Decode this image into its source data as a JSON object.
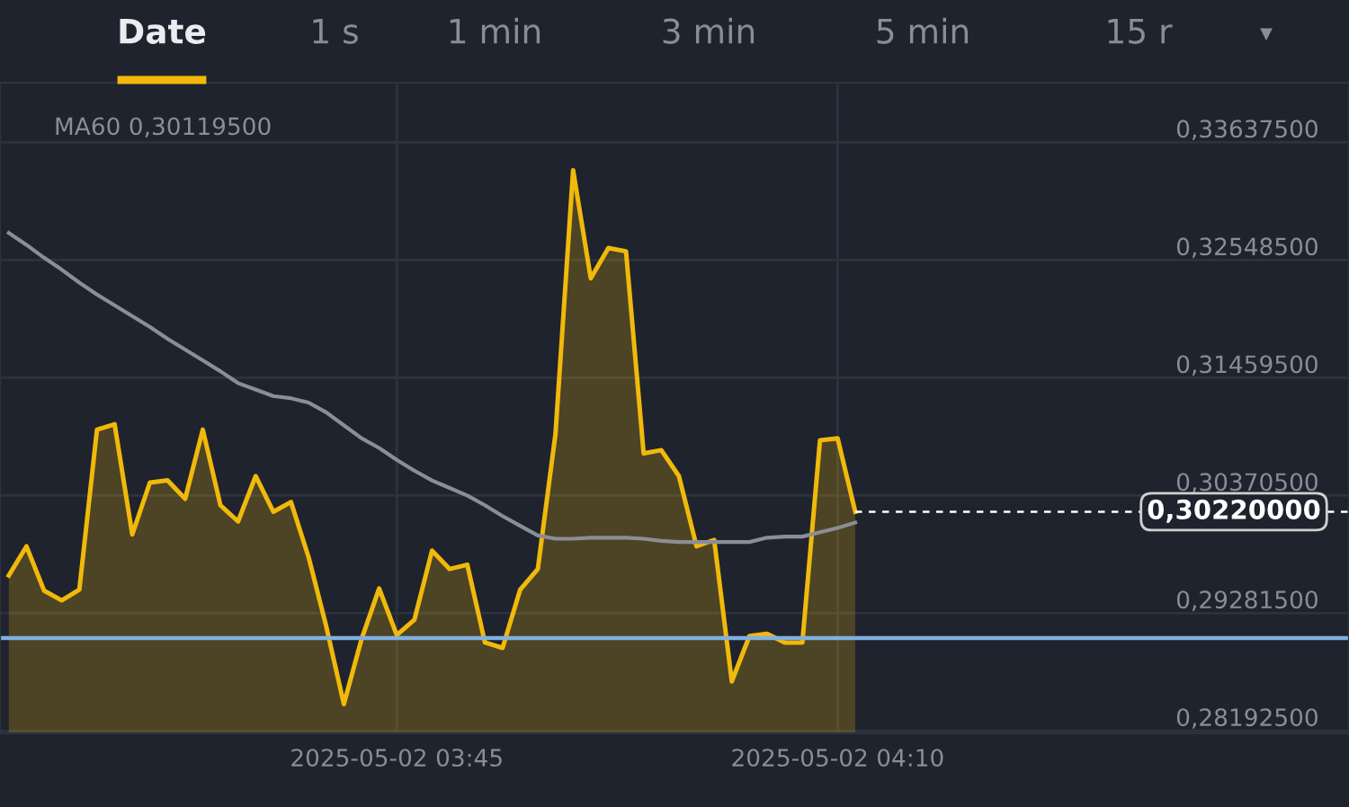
{
  "chart_data": {
    "type": "area",
    "annotations": [
      "Date",
      "1 s",
      "1 min",
      "3 min",
      "5 min",
      "15 r",
      "▾"
    ],
    "x": [
      "2025-05-02T03:23",
      "2025-05-02T03:24",
      "2025-05-02T03:25",
      "2025-05-02T03:26",
      "2025-05-02T03:27",
      "2025-05-02T03:28",
      "2025-05-02T03:29",
      "2025-05-02T03:30",
      "2025-05-02T03:31",
      "2025-05-02T03:32",
      "2025-05-02T03:33",
      "2025-05-02T03:34",
      "2025-05-02T03:35",
      "2025-05-02T03:36",
      "2025-05-02T03:37",
      "2025-05-02T03:38",
      "2025-05-02T03:39",
      "2025-05-02T03:40",
      "2025-05-02T03:41",
      "2025-05-02T03:42",
      "2025-05-02T03:43",
      "2025-05-02T03:44",
      "2025-05-02T03:45",
      "2025-05-02T03:46",
      "2025-05-02T03:47",
      "2025-05-02T03:48",
      "2025-05-02T03:49",
      "2025-05-02T03:50",
      "2025-05-02T03:51",
      "2025-05-02T03:52",
      "2025-05-02T03:53",
      "2025-05-02T03:54",
      "2025-05-02T03:55",
      "2025-05-02T03:56",
      "2025-05-02T03:57",
      "2025-05-02T03:58",
      "2025-05-02T03:59",
      "2025-05-02T04:00",
      "2025-05-02T04:01",
      "2025-05-02T04:02",
      "2025-05-02T04:03",
      "2025-05-02T04:04",
      "2025-05-02T04:05",
      "2025-05-02T04:06",
      "2025-05-02T04:07",
      "2025-05-02T04:08",
      "2025-05-02T04:09",
      "2025-05-02T04:10",
      "2025-05-02T04:11"
    ],
    "series": [
      {
        "color": "#f0b90b",
        "values": [
          0.2963,
          0.299,
          0.2949,
          0.294,
          0.295,
          0.3098,
          0.3103,
          0.3001,
          0.3049,
          0.3051,
          0.3034,
          0.3098,
          0.3028,
          0.3013,
          0.3055,
          0.3022,
          0.3031,
          0.298,
          0.2916,
          0.2844,
          0.2904,
          0.2951,
          0.2908,
          0.2922,
          0.2986,
          0.2969,
          0.2973,
          0.2901,
          0.2896,
          0.295,
          0.2969,
          0.3094,
          0.3338,
          0.3238,
          0.3266,
          0.3263,
          0.3076,
          0.3079,
          0.3055,
          0.299,
          0.2996,
          0.2865,
          0.2907,
          0.2909,
          0.2901,
          0.2901,
          0.3088,
          0.309,
          0.3022
        ]
      },
      {
        "type": "line",
        "name": "MA60 0,30119500",
        "color": "#8b8e96",
        "values": [
          0.328,
          0.3269,
          0.3257,
          0.3246,
          0.3234,
          0.3223,
          0.3213,
          0.3203,
          0.3193,
          0.3182,
          0.3172,
          0.3162,
          0.3152,
          0.3141,
          0.3135,
          0.3129,
          0.3127,
          0.3123,
          0.3114,
          0.3102,
          0.309,
          0.3081,
          0.307,
          0.306,
          0.3051,
          0.3044,
          0.3037,
          0.3028,
          0.3018,
          0.3009,
          0.3,
          0.2997,
          0.2997,
          0.2998,
          0.2998,
          0.2998,
          0.2997,
          0.2995,
          0.2994,
          0.2994,
          0.2994,
          0.2994,
          0.2994,
          0.2998,
          0.2999,
          0.2999,
          0.3003,
          0.3007,
          0.3012
        ]
      }
    ],
    "xlim": [
      "2025-05-02T03:22:30",
      "2025-05-02T04:39"
    ],
    "xticks": [
      {
        "value": "2025-05-02T03:45",
        "label": "2025-05-02 03:45"
      },
      {
        "value": "2025-05-02T04:10",
        "label": "2025-05-02 04:10"
      }
    ],
    "ylim": [
      0.2817,
      0.3419
    ],
    "yticks": [
      {
        "value": 0.281925,
        "label": "0,28192500"
      },
      {
        "value": 0.292815,
        "label": "0,29281500"
      },
      {
        "value": 0.303705,
        "label": "0,30370500"
      },
      {
        "value": 0.314595,
        "label": "0,31459500"
      },
      {
        "value": 0.325485,
        "label": "0,32548500"
      },
      {
        "value": 0.336375,
        "label": "0,33637500"
      }
    ],
    "ref_lines": [
      {
        "axis": "y",
        "value": 0.29052,
        "color": "#7fb0e0",
        "line_style": "solid"
      },
      {
        "axis": "y",
        "value": 0.3022,
        "label": "0,30220000",
        "color": "#ffffff",
        "line_style": "dashed"
      }
    ],
    "grid": true,
    "legend": "top left",
    "marker": "none",
    "line_style": "solid"
  }
}
